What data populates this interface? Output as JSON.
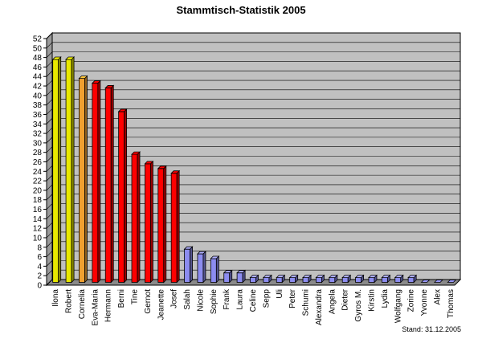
{
  "chart_data": {
    "type": "bar",
    "title": "Stammtisch-Statistik 2005",
    "footnote": "Stand: 31.12.2005",
    "categories": [
      "Ilona",
      "Robert",
      "Cornelia",
      "Eva-Maria",
      "Hermann",
      "Berni",
      "Tine",
      "Gernot",
      "Jeanette",
      "Josef",
      "Salah",
      "Nicole",
      "Sophie",
      "Frank",
      "Laura",
      "Celine",
      "Sepp",
      "Uli",
      "Peter",
      "Schumi",
      "Alexandra",
      "Angela",
      "Dieter",
      "Gyros M.",
      "Kirstin",
      "Lydia",
      "Wolfgang",
      "Zorine",
      "Yvonne",
      "Alex",
      "Thomas"
    ],
    "values": [
      47,
      47,
      43,
      42,
      41,
      36,
      27,
      25,
      24,
      23,
      7,
      6,
      5,
      2,
      2,
      1,
      1,
      1,
      1,
      1,
      1,
      1,
      1,
      1,
      1,
      1,
      1,
      1,
      0,
      0,
      0
    ],
    "bar_colors": [
      "#e8e800",
      "#e8e800",
      "#f0a030",
      "#ff0000",
      "#ff0000",
      "#ff0000",
      "#ff0000",
      "#ff0000",
      "#ff0000",
      "#ff0000",
      "#8c8cf0",
      "#8c8cf0",
      "#8c8cf0",
      "#8c8cf0",
      "#8c8cf0",
      "#8c8cf0",
      "#8c8cf0",
      "#8c8cf0",
      "#8c8cf0",
      "#8c8cf0",
      "#8c8cf0",
      "#8c8cf0",
      "#8c8cf0",
      "#8c8cf0",
      "#8c8cf0",
      "#8c8cf0",
      "#8c8cf0",
      "#8c8cf0",
      "#8c8cf0",
      "#8c8cf0",
      "#8c8cf0"
    ],
    "ylim": [
      0,
      52
    ],
    "ytick_step": 2,
    "grid": true,
    "plot_background": "#c0c0c0",
    "legend": "none"
  }
}
